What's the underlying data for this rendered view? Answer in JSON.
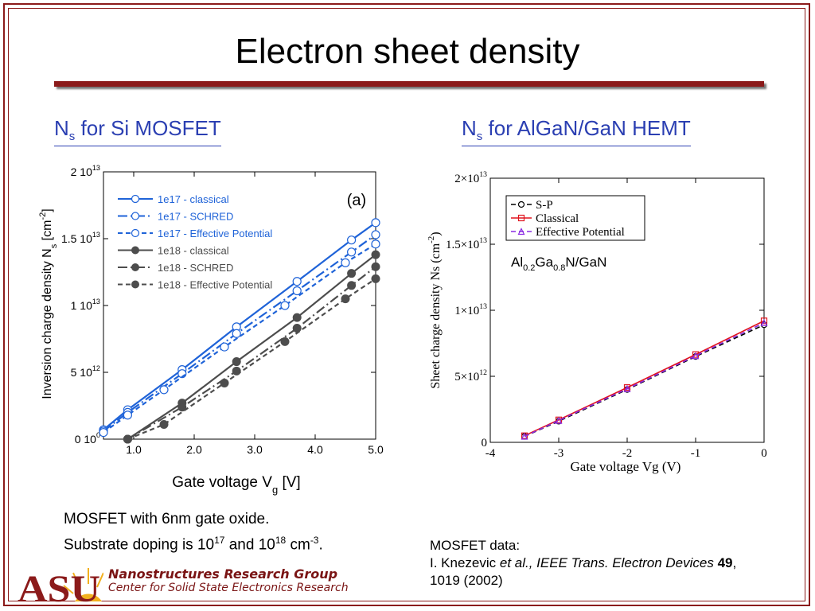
{
  "slide": {
    "title": "Electron sheet density",
    "left_heading": {
      "main": "N",
      "sub": "s",
      "rest": " for Si MOSFET"
    },
    "right_heading": {
      "main": "N",
      "sub": "s",
      "rest": " for AlGaN/GaN HEMT"
    },
    "caption": {
      "line1": "MOSFET with 6nm gate oxide.",
      "line2_a": "Substrate doping is 10",
      "sup1": "17",
      "line2_b": " and 10",
      "sup2": "18",
      "line2_c": " cm",
      "sup3": "-3",
      "line2_d": "."
    },
    "reference": {
      "line1": "MOSFET data:",
      "author": "I. Knezevic ",
      "etal": "et al., IEEE Trans. Electron Devices",
      "volume": " 49",
      "tail": ",",
      "line3": "1019 (2002)"
    },
    "footer": {
      "logo_text": "ASU",
      "group": "Nanostructures Research Group",
      "center": "Center for Solid State Electronics Research"
    },
    "colors": {
      "accent": "#8b1a1a",
      "heading": "#2b3fb2",
      "blue": "#1f63d8",
      "gray": "#4d4d4d"
    }
  },
  "chart_data": [
    {
      "type": "line",
      "panel_label": "(a)",
      "xlabel": "Gate voltage V",
      "xlabel_sub": "g",
      "xlabel_unit": "[V]",
      "ylabel": "Inversion charge density  N",
      "ylabel_sub": "s",
      "ylabel_unit": "[cm",
      "ylabel_sup": "-2",
      "ylabel_close": "]",
      "xlim": [
        0.5,
        5.0
      ],
      "ylim": [
        0,
        20000000000000.0
      ],
      "xticks": [
        1.0,
        2.0,
        3.0,
        4.0,
        5.0
      ],
      "xtick_labels": [
        "1.0",
        "2.0",
        "3.0",
        "4.0",
        "5.0"
      ],
      "yticks": [
        0,
        5000000000000.0,
        10000000000000.0,
        15000000000000.0,
        20000000000000.0
      ],
      "ytick_labels": [
        {
          "base": "0 10",
          "exp": "0"
        },
        {
          "base": "5 10",
          "exp": "12"
        },
        {
          "base": "1 10",
          "exp": "13"
        },
        {
          "base": "1.5 10",
          "exp": "13"
        },
        {
          "base": "2 10",
          "exp": "13"
        }
      ],
      "legend_position": "top-left",
      "series": [
        {
          "name": "1e17 - classical",
          "color": "#1f63d8",
          "style": "solid",
          "marker": "open-circle",
          "x": [
            0.5,
            0.9,
            1.8,
            2.7,
            3.7,
            4.6,
            5.0
          ],
          "y": [
            700000000000.0,
            2200000000000.0,
            5200000000000.0,
            8400000000000.0,
            11800000000000.0,
            14900000000000.0,
            16200000000000.0
          ]
        },
        {
          "name": "1e17 - SCHRED",
          "color": "#1f63d8",
          "style": "dashdot",
          "marker": "open-circle",
          "x": [
            0.5,
            0.9,
            1.8,
            2.7,
            3.7,
            4.6,
            5.0
          ],
          "y": [
            600000000000.0,
            2000000000000.0,
            4900000000000.0,
            7900000000000.0,
            11100000000000.0,
            14000000000000.0,
            15300000000000.0
          ]
        },
        {
          "name": "1e17 - Effective Potential",
          "color": "#1f63d8",
          "style": "dashed",
          "marker": "open-circle",
          "x": [
            0.5,
            0.9,
            1.5,
            2.5,
            3.5,
            4.5,
            5.0
          ],
          "y": [
            500000000000.0,
            1800000000000.0,
            3700000000000.0,
            6900000000000.0,
            10000000000000.0,
            13200000000000.0,
            14600000000000.0
          ]
        },
        {
          "name": "1e18 - classical",
          "color": "#4d4d4d",
          "style": "solid",
          "marker": "filled-circle",
          "x": [
            0.9,
            1.8,
            2.7,
            3.7,
            4.6,
            5.0
          ],
          "y": [
            0.0,
            2700000000000.0,
            5800000000000.0,
            9100000000000.0,
            12400000000000.0,
            13800000000000.0
          ]
        },
        {
          "name": "1e18 - SCHRED",
          "color": "#4d4d4d",
          "style": "dashdot",
          "marker": "filled-circle",
          "x": [
            0.9,
            1.8,
            2.7,
            3.7,
            4.6,
            5.0
          ],
          "y": [
            0.0,
            2400000000000.0,
            5100000000000.0,
            8300000000000.0,
            11500000000000.0,
            12900000000000.0
          ]
        },
        {
          "name": "1e18 - Effective Potential",
          "color": "#4d4d4d",
          "style": "dashed",
          "marker": "filled-circle",
          "x": [
            0.9,
            1.5,
            2.5,
            3.5,
            4.5,
            5.0
          ],
          "y": [
            0.0,
            1100000000000.0,
            4200000000000.0,
            7300000000000.0,
            10500000000000.0,
            12000000000000.0
          ]
        }
      ]
    },
    {
      "type": "line",
      "xlabel": "Gate voltage Vg (V)",
      "ylabel": "Sheet charge density Ns (cm",
      "ylabel_sup": "-2",
      "ylabel_close": ")",
      "annotation": {
        "a": "Al",
        "s1": "0.2",
        "b": "Ga",
        "s2": "0.8",
        "c": "N/GaN"
      },
      "xlim": [
        -4,
        0
      ],
      "ylim": [
        0,
        20000000000000.0
      ],
      "xticks": [
        -4,
        -3,
        -2,
        -1,
        0
      ],
      "xtick_labels": [
        "-4",
        "-3",
        "-2",
        "-1",
        "0"
      ],
      "yticks": [
        0,
        5000000000000.0,
        10000000000000.0,
        15000000000000.0,
        20000000000000.0
      ],
      "ytick_labels": [
        {
          "base": "0",
          "exp": ""
        },
        {
          "base": "5×10",
          "exp": "12"
        },
        {
          "base": "1×10",
          "exp": "13"
        },
        {
          "base": "1.5×10",
          "exp": "13"
        },
        {
          "base": "2×10",
          "exp": "13"
        }
      ],
      "legend_position": "top-left",
      "series": [
        {
          "name": "S-P",
          "color": "#000000",
          "style": "dashed",
          "marker": "open-circle",
          "x": [
            -3.5,
            -3,
            -2,
            -1,
            0
          ],
          "y": [
            450000000000.0,
            1600000000000.0,
            4000000000000.0,
            6500000000000.0,
            8900000000000.0
          ]
        },
        {
          "name": "Classical",
          "color": "#e0141e",
          "style": "solid",
          "marker": "open-square",
          "x": [
            -3.5,
            -3,
            -2,
            -1,
            0
          ],
          "y": [
            500000000000.0,
            1700000000000.0,
            4150000000000.0,
            6650000000000.0,
            9200000000000.0
          ]
        },
        {
          "name": "Effective Potential",
          "color": "#8a2be2",
          "style": "dashed",
          "marker": "open-triangle",
          "x": [
            -3.5,
            -3,
            -2,
            -1,
            0
          ],
          "y": [
            450000000000.0,
            1650000000000.0,
            4050000000000.0,
            6550000000000.0,
            9050000000000.0
          ]
        }
      ]
    }
  ]
}
